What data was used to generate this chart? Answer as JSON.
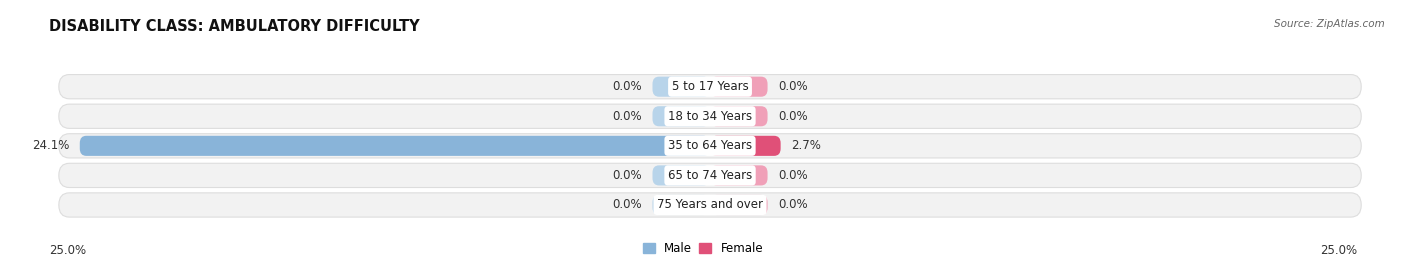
{
  "title": "DISABILITY CLASS: AMBULATORY DIFFICULTY",
  "source": "Source: ZipAtlas.com",
  "categories": [
    "5 to 17 Years",
    "18 to 34 Years",
    "35 to 64 Years",
    "65 to 74 Years",
    "75 Years and over"
  ],
  "male_values": [
    0.0,
    0.0,
    24.1,
    0.0,
    0.0
  ],
  "female_values": [
    0.0,
    0.0,
    2.7,
    0.0,
    0.0
  ],
  "male_color": "#89B4D9",
  "male_color_nub": "#B8D4EA",
  "female_color": "#E05078",
  "female_color_nub": "#F0A0B8",
  "male_label": "Male",
  "female_label": "Female",
  "axis_max": 25.0,
  "nub_size": 2.2,
  "title_fontsize": 10.5,
  "label_fontsize": 8.5,
  "cat_fontsize": 8.5,
  "tick_fontsize": 8.5,
  "source_fontsize": 7.5,
  "background_color": "#FFFFFF",
  "row_bg_color": "#F2F2F2",
  "row_edge_color": "#DDDDDD"
}
